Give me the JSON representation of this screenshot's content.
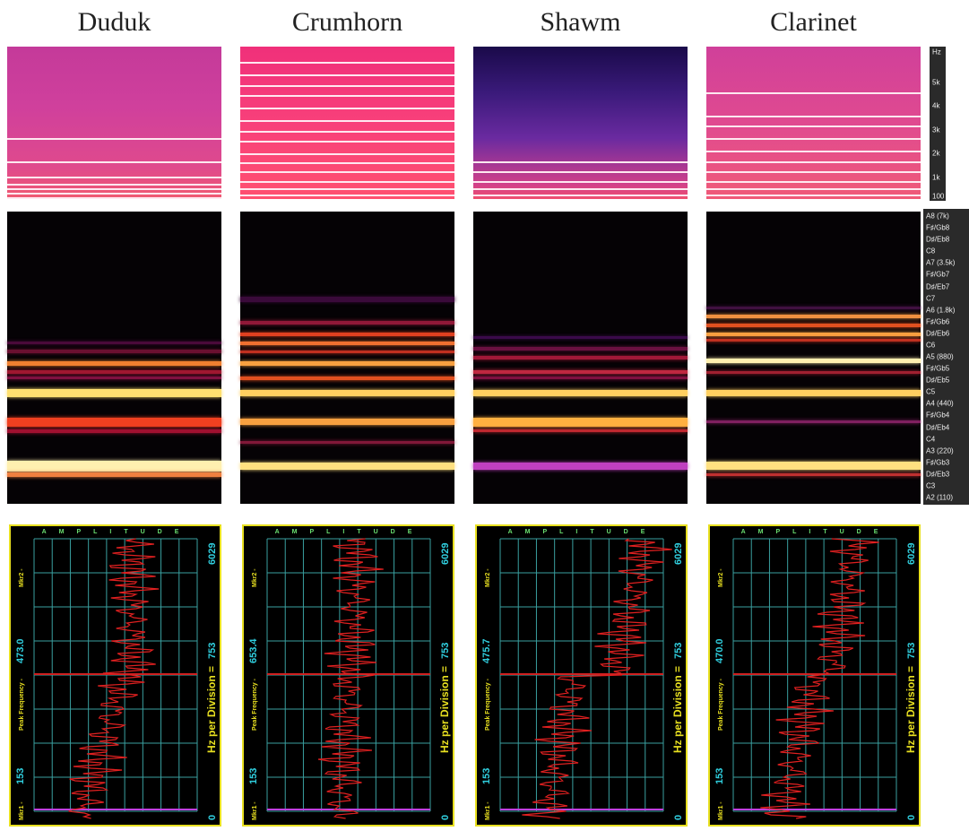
{
  "columns": [
    {
      "title": "Duduk",
      "peak": "473.0"
    },
    {
      "title": "Crumhorn",
      "peak": "653.4"
    },
    {
      "title": "Shawm",
      "peak": "475.7"
    },
    {
      "title": "Clarinet",
      "peak": "470.0"
    }
  ],
  "hz_scale": [
    "Hz",
    "5k",
    "4k",
    "3k",
    "2k",
    "1k",
    "100"
  ],
  "note_scale": [
    "A8 (7k)",
    "F♯/Gb8",
    "D♯/Eb8",
    "C8",
    "A7 (3.5k)",
    "F♯/Gb7",
    "D♯/Eb7",
    "C7",
    "A6 (1.8k)",
    "F♯/Gb6",
    "D♯/Eb6",
    "C6",
    "A5 (880)",
    "F♯/Gb5",
    "D♯/Eb5",
    "C5",
    "A4 (440)",
    "F♯/Gb4",
    "D♯/Eb4",
    "C4",
    "A3 (220)",
    "F♯/Gb3",
    "D♯/Eb3",
    "C3",
    "A2 (110)"
  ],
  "analyzer": {
    "amplitude": "AMPLITUDE",
    "mkr1": "Mkr1 -",
    "mkr1_value": "153",
    "mkr2": "Mkr2 -",
    "peak_label": "Peak Frequency -",
    "hz_div_label": "Hz per Division =",
    "hz_div": "753",
    "top": "6029",
    "bottom": "0"
  }
}
